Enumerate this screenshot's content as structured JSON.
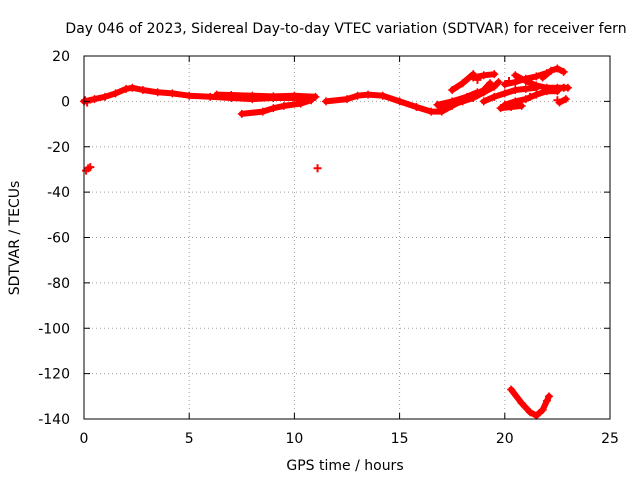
{
  "chart_data": {
    "type": "scatter",
    "title": "Day 046 of 2023, Sidereal Day-to-day VTEC variation (SDTVAR) for receiver fern",
    "xlabel": "GPS time / hours",
    "ylabel": "SDTVAR / TECUs",
    "xlim": [
      0,
      25
    ],
    "ylim": [
      -140,
      20
    ],
    "xticks": [
      0,
      5,
      10,
      15,
      20,
      25
    ],
    "yticks": [
      20,
      0,
      -20,
      -40,
      -60,
      -80,
      -100,
      -120,
      -140
    ],
    "grid": true,
    "marker_color": "#ff0000",
    "series": [
      {
        "name": "SDTVAR",
        "paths": [
          [
            [
              0.0,
              0.0
            ],
            [
              0.5,
              1.0
            ],
            [
              1.0,
              2.0
            ],
            [
              1.5,
              3.5
            ],
            [
              2.0,
              5.5
            ],
            [
              2.3,
              6.0
            ],
            [
              2.8,
              5.0
            ],
            [
              3.5,
              4.0
            ],
            [
              4.2,
              3.5
            ],
            [
              5.0,
              2.5
            ],
            [
              6.0,
              2.0
            ],
            [
              7.0,
              1.5
            ],
            [
              8.0,
              1.0
            ],
            [
              9.0,
              1.5
            ],
            [
              10.0,
              1.5
            ],
            [
              10.8,
              1.5
            ]
          ],
          [
            [
              6.3,
              3.0
            ],
            [
              7.0,
              2.8
            ],
            [
              8.0,
              2.5
            ],
            [
              9.0,
              2.2
            ],
            [
              10.0,
              2.5
            ],
            [
              11.0,
              2.0
            ]
          ],
          [
            [
              7.5,
              -5.5
            ],
            [
              8.5,
              -4.5
            ],
            [
              9.0,
              -3.0
            ],
            [
              9.5,
              -2.0
            ],
            [
              10.3,
              -1.0
            ],
            [
              10.8,
              0.5
            ]
          ],
          [
            [
              11.5,
              0.0
            ],
            [
              12.5,
              1.0
            ],
            [
              13.0,
              2.5
            ],
            [
              13.5,
              3.0
            ],
            [
              14.2,
              2.5
            ],
            [
              15.0,
              0.0
            ],
            [
              15.8,
              -2.5
            ],
            [
              16.5,
              -4.5
            ],
            [
              17.0,
              -4.5
            ],
            [
              17.5,
              -2.0
            ],
            [
              18.0,
              0.5
            ],
            [
              18.5,
              2.5
            ],
            [
              19.0,
              5.0
            ],
            [
              19.3,
              8.0
            ]
          ],
          [
            [
              16.8,
              -1.5
            ],
            [
              17.5,
              0.0
            ],
            [
              18.2,
              2.0
            ],
            [
              18.7,
              4.0
            ]
          ],
          [
            [
              17.0,
              -3.0
            ],
            [
              17.5,
              -1.5
            ],
            [
              18.0,
              0.0
            ],
            [
              18.5,
              1.5
            ],
            [
              19.0,
              4.0
            ],
            [
              19.5,
              6.5
            ],
            [
              19.7,
              8.5
            ]
          ],
          [
            [
              17.5,
              5.0
            ],
            [
              18.0,
              8.0
            ],
            [
              18.5,
              12.0
            ]
          ],
          [
            [
              18.5,
              10.5
            ],
            [
              19.0,
              11.5
            ],
            [
              19.5,
              12.0
            ]
          ],
          [
            [
              19.0,
              0.0
            ],
            [
              19.5,
              2.0
            ],
            [
              20.0,
              3.5
            ],
            [
              20.5,
              5.0
            ],
            [
              21.0,
              5.5
            ],
            [
              21.5,
              6.0
            ]
          ],
          [
            [
              20.5,
              11.5
            ],
            [
              21.0,
              9.0
            ],
            [
              21.5,
              7.0
            ],
            [
              22.0,
              6.0
            ],
            [
              22.5,
              6.0
            ],
            [
              23.0,
              6.0
            ]
          ],
          [
            [
              20.0,
              -1.5
            ],
            [
              20.5,
              0.0
            ],
            [
              21.0,
              1.0
            ],
            [
              21.5,
              3.0
            ],
            [
              22.0,
              4.5
            ],
            [
              22.5,
              4.5
            ]
          ],
          [
            [
              20.0,
              7.5
            ],
            [
              20.5,
              8.5
            ],
            [
              21.0,
              10.0
            ],
            [
              21.5,
              11.0
            ],
            [
              22.0,
              12.5
            ]
          ],
          [
            [
              19.8,
              -3.0
            ],
            [
              20.3,
              -2.5
            ],
            [
              20.8,
              -2.0
            ]
          ],
          [
            [
              21.8,
              10.5
            ],
            [
              22.2,
              13.5
            ],
            [
              22.5,
              14.5
            ],
            [
              22.8,
              13.0
            ]
          ],
          [
            [
              22.6,
              -0.5
            ],
            [
              22.9,
              1.0
            ]
          ],
          [
            [
              20.3,
              -127.0
            ],
            [
              20.8,
              -133.0
            ],
            [
              21.2,
              -137.0
            ],
            [
              21.5,
              -138.5
            ],
            [
              21.8,
              -136.0
            ],
            [
              22.0,
              -132.0
            ],
            [
              22.1,
              -130.0
            ]
          ]
        ],
        "points": [
          [
            0.05,
            0.5
          ],
          [
            0.15,
            -0.5
          ],
          [
            0.1,
            -30.5
          ],
          [
            0.2,
            -29.5
          ],
          [
            0.3,
            -29.0
          ],
          [
            11.1,
            -29.5
          ],
          [
            18.7,
            9.5
          ],
          [
            19.4,
            6.5
          ],
          [
            20.2,
            9.0
          ],
          [
            21.2,
            2.0
          ],
          [
            22.8,
            6.0
          ],
          [
            22.5,
            0.5
          ]
        ]
      }
    ]
  }
}
